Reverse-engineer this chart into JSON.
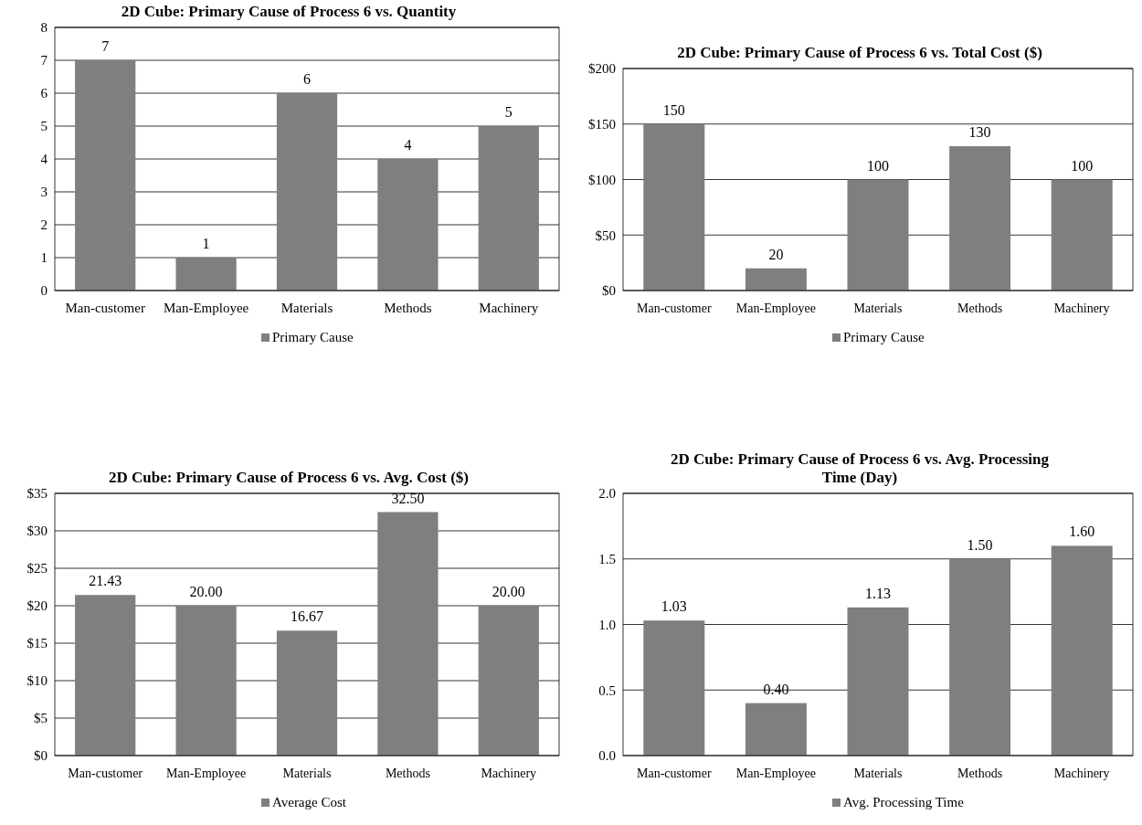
{
  "chart_data": [
    {
      "type": "bar",
      "title": "2D Cube: Primary Cause of Process 6 vs. Quantity",
      "categories": [
        "Man-customer",
        "Man-Employee",
        "Materials",
        "Methods",
        "Machinery"
      ],
      "series": [
        {
          "name": "Primary Cause",
          "color": "#7f7f7f",
          "values": [
            7,
            1,
            6,
            4,
            5
          ]
        }
      ],
      "ylim": [
        0,
        8
      ],
      "yticks": [
        0,
        1,
        2,
        3,
        4,
        5,
        6,
        7,
        8
      ],
      "grid": "y",
      "legend": "bottom",
      "data_labels": true
    },
    {
      "type": "bar",
      "title": "2D Cube: Primary Cause of Process 6 vs. Total Cost ($)",
      "categories": [
        "Man-customer",
        "Man-Employee",
        "Materials",
        "Methods",
        "Machinery"
      ],
      "series": [
        {
          "name": "Primary Cause",
          "color": "#7f7f7f",
          "values": [
            150,
            20,
            100,
            130,
            100
          ]
        }
      ],
      "ylim": [
        0,
        200
      ],
      "yticks": [
        {
          "value": 0,
          "label": "$0"
        },
        {
          "value": 50,
          "label": "$50"
        },
        {
          "value": 100,
          "label": "$100"
        },
        {
          "value": 150,
          "label": "$150"
        },
        {
          "value": 200,
          "label": "$200"
        }
      ],
      "grid": "y",
      "legend": "bottom",
      "data_labels": true
    },
    {
      "type": "bar",
      "title": "2D Cube: Primary Cause of Process 6 vs. Avg. Cost ($)",
      "categories": [
        "Man-customer",
        "Man-Employee",
        "Materials",
        "Methods",
        "Machinery"
      ],
      "series": [
        {
          "name": "Average Cost",
          "color": "#7f7f7f",
          "values": [
            21.43,
            20,
            16.67,
            32.5,
            20
          ],
          "value_labels": [
            "21.43",
            "20.00",
            "16.67",
            "32.50",
            "20.00"
          ]
        }
      ],
      "ylim": [
        0,
        35
      ],
      "yticks": [
        {
          "value": 0,
          "label": "$0"
        },
        {
          "value": 5,
          "label": "$5"
        },
        {
          "value": 10,
          "label": "$10"
        },
        {
          "value": 15,
          "label": "$15"
        },
        {
          "value": 20,
          "label": "$20"
        },
        {
          "value": 25,
          "label": "$25"
        },
        {
          "value": 30,
          "label": "$30"
        },
        {
          "value": 35,
          "label": "$35"
        }
      ],
      "grid": "y",
      "legend": "bottom"
    },
    {
      "type": "bar",
      "title": "2D Cube: Primary Cause of Process 6 vs. Avg. Processing Time (Day)",
      "categories": [
        "Man-customer",
        "Man-Employee",
        "Materials",
        "Methods",
        "Machinery"
      ],
      "series": [
        {
          "name": "Avg. Processing Time",
          "color": "#7f7f7f",
          "values": [
            1.03,
            0.4,
            1.13,
            1.5,
            1.6
          ],
          "value_labels": [
            "1.03",
            "0.40",
            "1.13",
            "1.50",
            "1.60"
          ]
        }
      ],
      "ylim": [
        0,
        2
      ],
      "yticks": [
        {
          "value": 0,
          "label": "0.0"
        },
        {
          "value": 0.5,
          "label": "0.5"
        },
        {
          "value": 1,
          "label": "1.0"
        },
        {
          "value": 1.5,
          "label": "1.5"
        },
        {
          "value": 2,
          "label": "2.0"
        }
      ],
      "grid": "y",
      "legend": "bottom"
    }
  ]
}
